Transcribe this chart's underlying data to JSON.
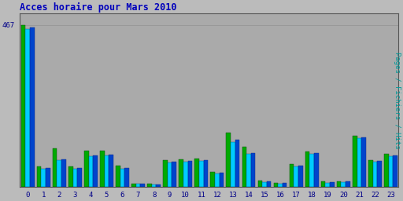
{
  "title": "Acces horaire pour Mars 2010",
  "ylabel": "Pages / Fichiers / Hits",
  "hours": [
    0,
    1,
    2,
    3,
    4,
    5,
    6,
    7,
    8,
    9,
    10,
    11,
    12,
    13,
    14,
    15,
    16,
    17,
    18,
    19,
    20,
    21,
    22,
    23
  ],
  "pages": [
    455,
    52,
    78,
    52,
    88,
    90,
    52,
    8,
    6,
    70,
    72,
    75,
    38,
    130,
    95,
    14,
    10,
    58,
    95,
    12,
    14,
    140,
    72,
    88
  ],
  "fichiers": [
    460,
    55,
    80,
    55,
    90,
    92,
    55,
    9,
    7,
    72,
    74,
    78,
    40,
    135,
    98,
    15,
    11,
    60,
    97,
    13,
    15,
    142,
    74,
    90
  ],
  "hits": [
    467,
    58,
    110,
    58,
    105,
    105,
    60,
    10,
    8,
    78,
    80,
    82,
    42,
    155,
    115,
    18,
    12,
    65,
    102,
    15,
    16,
    148,
    78,
    95
  ],
  "color_pages": "#00CCFF",
  "color_fichiers": "#0044CC",
  "color_hits": "#00AA00",
  "background_color": "#BBBBBB",
  "plot_bg_color": "#AAAAAA",
  "title_color": "#0000BB",
  "ylabel_color": "#009999",
  "tick_color": "#000088",
  "ymax": 500,
  "grid_color": "#999999",
  "bar_width": 0.28,
  "figwidth": 5.12,
  "figheight": 2.56,
  "dpi": 100
}
